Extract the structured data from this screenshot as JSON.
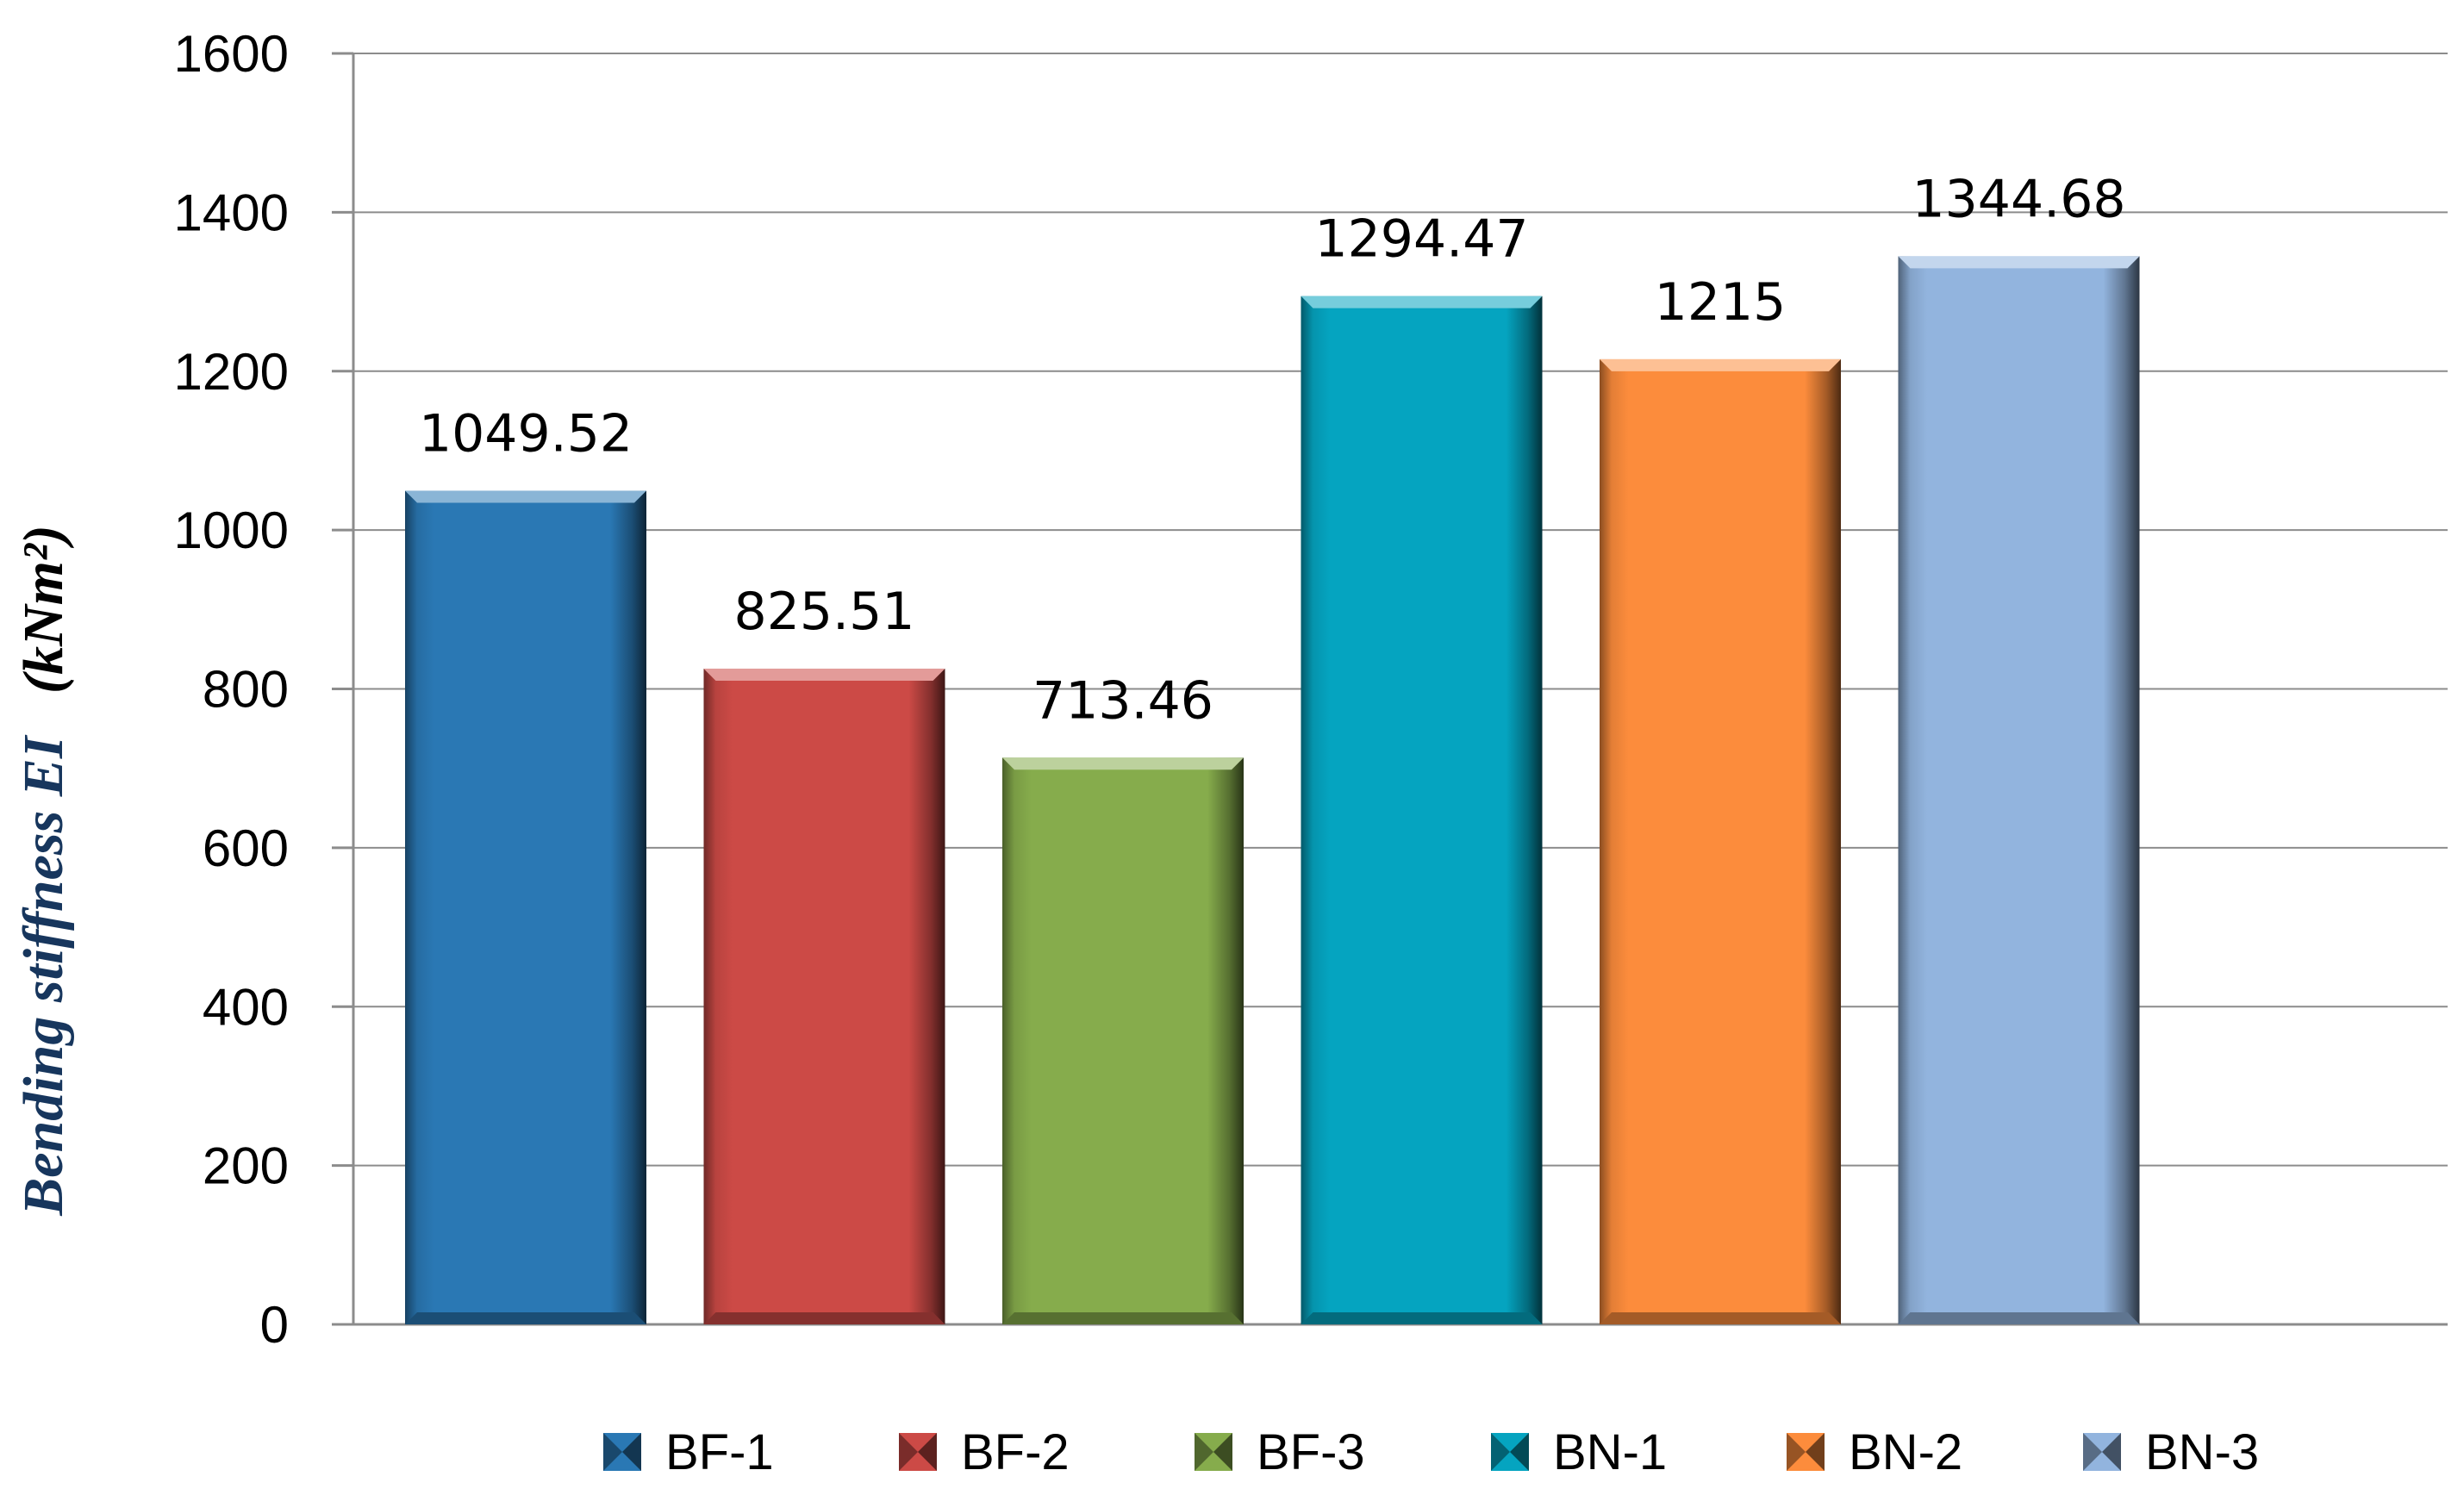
{
  "chart_data": {
    "type": "bar",
    "categories": [
      "BF-1",
      "BF-2",
      "BF-3",
      "BN-1",
      "BN-2",
      "BN-3"
    ],
    "values": [
      1049.52,
      825.51,
      713.46,
      1294.47,
      1215,
      1344.68
    ],
    "value_labels": [
      "1049.52",
      "825.51",
      "713.46",
      "1294.47",
      "1215",
      "1344.68"
    ],
    "colors": [
      "#2a78b4",
      "#cc4a46",
      "#86ac4c",
      "#05a4c0",
      "#fc8c3c",
      "#92b4de"
    ],
    "ylabel": "Bending stiffness EI",
    "ylabel_unit": "(kNm²)",
    "ylim": [
      0,
      1600
    ],
    "yticks": [
      0,
      200,
      400,
      600,
      800,
      1000,
      1200,
      1400,
      1600
    ],
    "grid": true,
    "legend_position": "bottom",
    "legend": [
      "BF-1",
      "BF-2",
      "BF-3",
      "BN-1",
      "BN-2",
      "BN-3"
    ]
  }
}
